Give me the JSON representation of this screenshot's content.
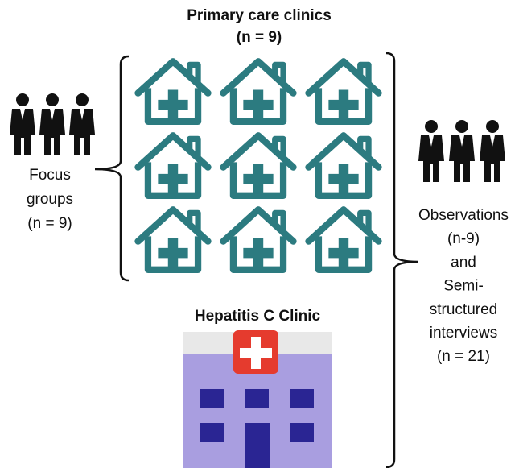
{
  "primary_care": {
    "title": "Primary care clinics",
    "count": "(n = 9)"
  },
  "focus_groups": {
    "lines": [
      "Focus",
      "groups",
      "(n = 9)"
    ]
  },
  "observations": {
    "lines": [
      "Observations",
      "(n-9)",
      "and",
      "Semi-",
      "structured",
      "interviews",
      "(n = 21)"
    ]
  },
  "hepatitis_clinic": {
    "title": "Hepatitis C Clinic"
  }
}
